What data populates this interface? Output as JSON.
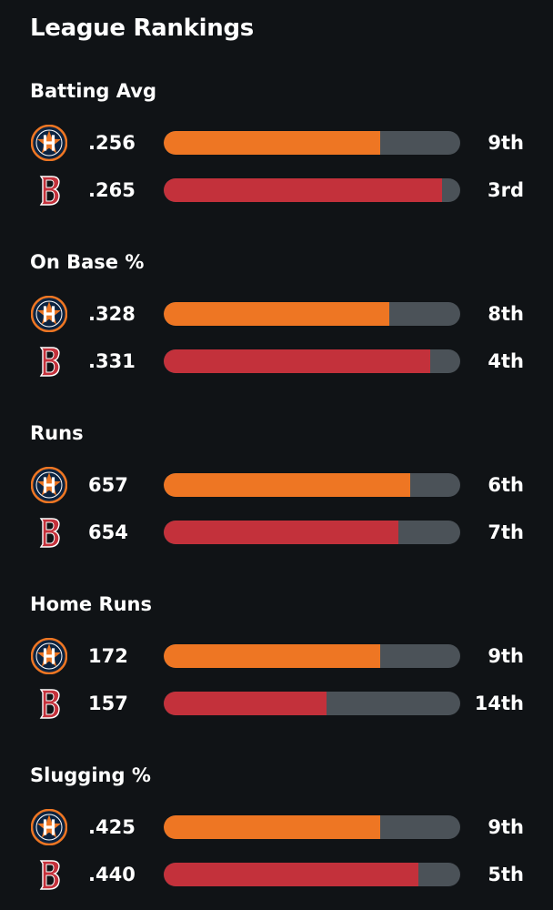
{
  "header": {
    "title": "League Rankings"
  },
  "teams": {
    "astros": {
      "icon": "astros-logo-icon",
      "color": "#ee7623"
    },
    "redsox": {
      "icon": "red-sox-logo-icon",
      "color": "#c3313b"
    }
  },
  "categories": [
    {
      "title": "Batting Avg",
      "rows": [
        {
          "team": "astros",
          "value": ".256",
          "rank": "9th",
          "bar_fraction": 0.73
        },
        {
          "team": "redsox",
          "value": ".265",
          "rank": "3rd",
          "bar_fraction": 0.94
        }
      ]
    },
    {
      "title": "On Base %",
      "rows": [
        {
          "team": "astros",
          "value": ".328",
          "rank": "8th",
          "bar_fraction": 0.76
        },
        {
          "team": "redsox",
          "value": ".331",
          "rank": "4th",
          "bar_fraction": 0.9
        }
      ]
    },
    {
      "title": "Runs",
      "rows": [
        {
          "team": "astros",
          "value": "657",
          "rank": "6th",
          "bar_fraction": 0.83
        },
        {
          "team": "redsox",
          "value": "654",
          "rank": "7th",
          "bar_fraction": 0.79
        }
      ]
    },
    {
      "title": "Home Runs",
      "rows": [
        {
          "team": "astros",
          "value": "172",
          "rank": "9th",
          "bar_fraction": 0.73
        },
        {
          "team": "redsox",
          "value": "157",
          "rank": "14th",
          "bar_fraction": 0.55
        }
      ]
    },
    {
      "title": "Slugging %",
      "rows": [
        {
          "team": "astros",
          "value": ".425",
          "rank": "9th",
          "bar_fraction": 0.73
        },
        {
          "team": "redsox",
          "value": ".440",
          "rank": "5th",
          "bar_fraction": 0.86
        }
      ]
    }
  ]
}
